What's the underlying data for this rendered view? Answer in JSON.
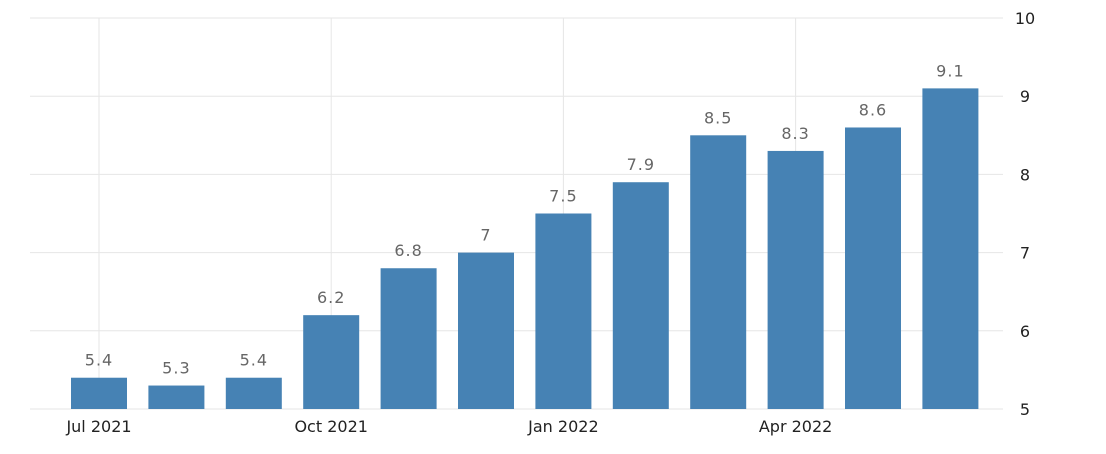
{
  "chart_data": {
    "type": "bar",
    "x": [
      "2021-07",
      "2021-08",
      "2021-09",
      "2021-10",
      "2021-11",
      "2021-12",
      "2022-01",
      "2022-02",
      "2022-03",
      "2022-04",
      "2022-05",
      "2022-06"
    ],
    "values": [
      5.4,
      5.3,
      5.4,
      6.2,
      6.8,
      7,
      7.5,
      7.9,
      8.5,
      8.3,
      8.6,
      9.1
    ],
    "data_labels": [
      "5.4",
      "5.3",
      "5.4",
      "6.2",
      "6.8",
      "7",
      "7.5",
      "7.9",
      "8.5",
      "8.3",
      "8.6",
      "9.1"
    ],
    "x_ticks": [
      {
        "x": "2021-07",
        "label": "Jul 2021"
      },
      {
        "x": "2021-10",
        "label": "Oct 2021"
      },
      {
        "x": "2022-01",
        "label": "Jan 2022"
      },
      {
        "x": "2022-04",
        "label": "Apr 2022"
      }
    ],
    "y_ticks": [
      5,
      6,
      7,
      8,
      9,
      10
    ],
    "y_tick_labels": [
      "5",
      "6",
      "7",
      "8",
      "9",
      "10"
    ],
    "ylim": [
      5,
      10
    ],
    "y_axis_position": "right",
    "grid": true,
    "legend": "none",
    "bar_color": "#4682b4",
    "grid_color": "#e6e6e6",
    "label_color": "#666666",
    "title": "",
    "xlabel": "",
    "ylabel": ""
  }
}
